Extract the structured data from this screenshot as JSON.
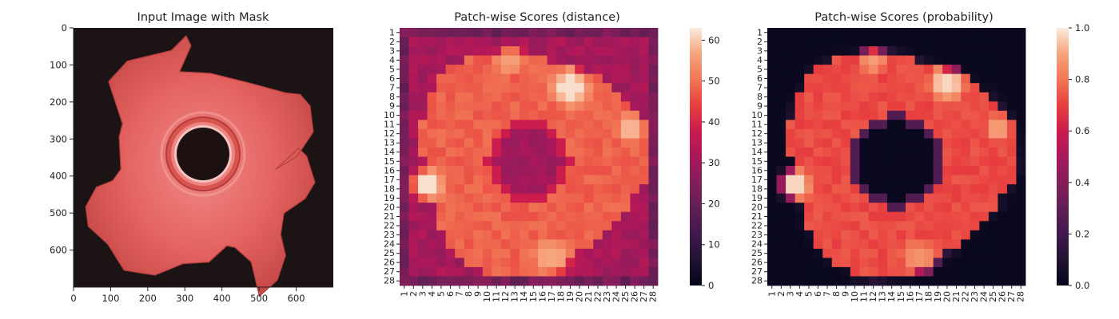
{
  "chart_data": [
    {
      "type": "image",
      "title": "Input Image with Mask",
      "x_ticks": [
        "0",
        "100",
        "200",
        "300",
        "400",
        "500",
        "600"
      ],
      "y_ticks": [
        "0",
        "100",
        "200",
        "300",
        "400",
        "500",
        "600"
      ],
      "xlim": [
        0,
        700
      ],
      "ylim": [
        0,
        700
      ],
      "background_color": "#1c1414",
      "object_color": "#e05a5a"
    },
    {
      "type": "heatmap",
      "title": "Patch-wise Scores (distance)",
      "rows": 28,
      "cols": 28,
      "x_ticks": [
        "1",
        "2",
        "3",
        "4",
        "5",
        "6",
        "7",
        "8",
        "9",
        "10",
        "11",
        "12",
        "13",
        "14",
        "15",
        "16",
        "17",
        "18",
        "19",
        "20",
        "21",
        "22",
        "23",
        "24",
        "25",
        "26",
        "27",
        "28"
      ],
      "y_ticks": [
        "1",
        "2",
        "3",
        "4",
        "5",
        "6",
        "7",
        "8",
        "9",
        "10",
        "11",
        "12",
        "13",
        "14",
        "15",
        "16",
        "17",
        "18",
        "19",
        "20",
        "21",
        "22",
        "23",
        "24",
        "25",
        "26",
        "27",
        "28"
      ],
      "colorbar": {
        "min": 0,
        "max": 63,
        "ticks": [
          "0",
          "10",
          "20",
          "30",
          "40",
          "50",
          "60"
        ],
        "tick_values": [
          0,
          10,
          20,
          30,
          40,
          50,
          60
        ]
      },
      "colormap": "rocket",
      "model": {
        "edge_value": 18,
        "border_value": 28,
        "body_value": 48,
        "hole_value": 28,
        "hole_center": [
          14.5,
          15.0
        ],
        "hole_radius": 3.6,
        "hotspots": [
          {
            "center": [
              19.0,
              7.0
            ],
            "radius": 2.6,
            "value": 62
          },
          {
            "center": [
              25.5,
              11.5
            ],
            "radius": 2.0,
            "value": 58
          },
          {
            "center": [
              3.5,
              17.5
            ],
            "radius": 2.3,
            "value": 62
          },
          {
            "center": [
              17.0,
              25.5
            ],
            "radius": 2.6,
            "value": 57
          },
          {
            "center": [
              12.5,
              4.0
            ],
            "radius": 2.0,
            "value": 56
          }
        ]
      }
    },
    {
      "type": "heatmap",
      "title": "Patch-wise Scores (probability)",
      "rows": 28,
      "cols": 28,
      "x_ticks": [
        "1",
        "2",
        "3",
        "4",
        "5",
        "6",
        "7",
        "8",
        "9",
        "10",
        "11",
        "12",
        "13",
        "14",
        "15",
        "16",
        "17",
        "18",
        "19",
        "20",
        "21",
        "22",
        "23",
        "24",
        "25",
        "26",
        "27",
        "28"
      ],
      "y_ticks": [
        "1",
        "2",
        "3",
        "4",
        "5",
        "6",
        "7",
        "8",
        "9",
        "10",
        "11",
        "12",
        "13",
        "14",
        "15",
        "16",
        "17",
        "18",
        "19",
        "20",
        "21",
        "22",
        "23",
        "24",
        "25",
        "26",
        "27",
        "28"
      ],
      "colorbar": {
        "min": 0,
        "max": 1.0,
        "ticks": [
          "0.0",
          "0.2",
          "0.4",
          "0.6",
          "0.8",
          "1.0"
        ],
        "tick_values": [
          0,
          0.2,
          0.4,
          0.6,
          0.8,
          1.0
        ]
      },
      "colormap": "rocket",
      "model": {
        "outside_value": 0.02,
        "body_value": 0.72,
        "hole_value": 0.02,
        "hole_center": [
          14.5,
          15.0
        ],
        "hole_radius": 4.2,
        "hotspots": [
          {
            "center": [
              20.0,
              6.5
            ],
            "radius": 2.4,
            "value": 0.97
          },
          {
            "center": [
              25.5,
              11.5
            ],
            "radius": 1.8,
            "value": 0.88
          },
          {
            "center": [
              3.5,
              17.5
            ],
            "radius": 2.2,
            "value": 0.97
          },
          {
            "center": [
              17.0,
              25.5
            ],
            "radius": 2.4,
            "value": 0.86
          },
          {
            "center": [
              12.0,
              4.0
            ],
            "radius": 1.8,
            "value": 0.88
          }
        ]
      }
    }
  ]
}
